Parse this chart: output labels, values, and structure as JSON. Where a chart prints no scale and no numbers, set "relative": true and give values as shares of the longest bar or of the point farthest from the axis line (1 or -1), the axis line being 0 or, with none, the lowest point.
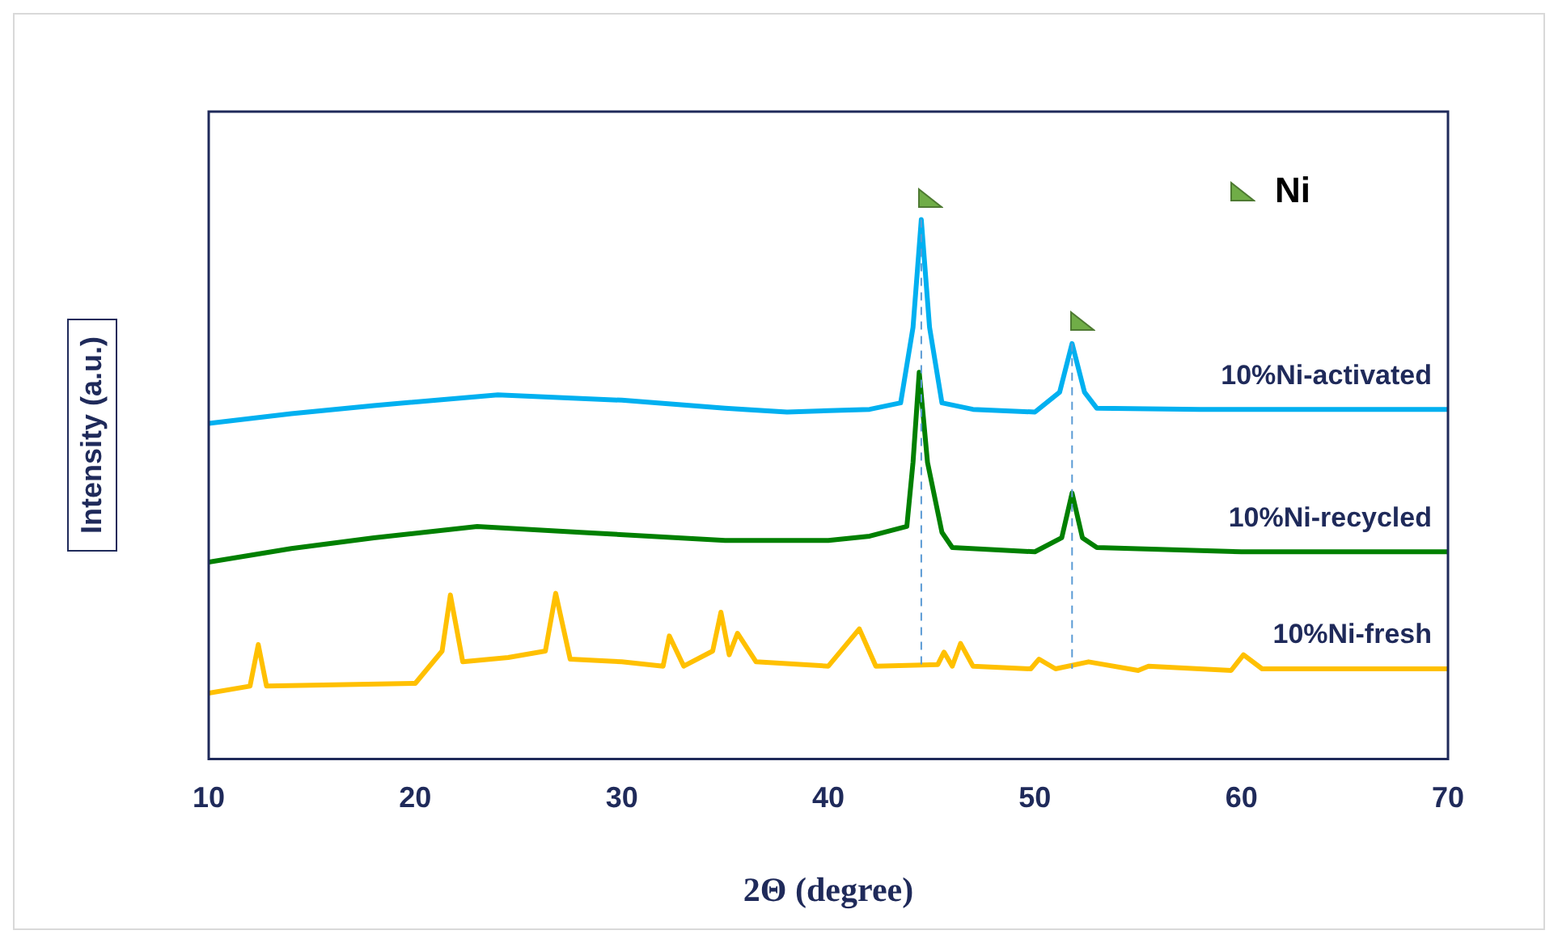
{
  "chart_data": {
    "type": "line",
    "xlabel": "2Θ (degree)",
    "ylabel": "Intensity (a.u.)",
    "relative": true,
    "xlim": [
      10,
      70
    ],
    "xticks": [
      10,
      20,
      30,
      40,
      50,
      60,
      70
    ],
    "grid": false,
    "legend": false,
    "marker": "none",
    "tick_labels": "x",
    "annotations": [
      "Ni"
    ],
    "ref_lines": [
      {
        "axis": "x",
        "value": 44.5,
        "color": "#5b9bd5",
        "line_style": "dashed"
      },
      {
        "axis": "x",
        "value": 51.8,
        "color": "#5b9bd5",
        "line_style": "dashed"
      }
    ],
    "series": [
      {
        "name": "10%Ni-activated",
        "color": "#00b0f0",
        "x": [
          10,
          14,
          18,
          24,
          30,
          35,
          38,
          42,
          43.5,
          44.1,
          44.5,
          44.9,
          45.5,
          47,
          50,
          51.2,
          51.8,
          52.4,
          53,
          58,
          64,
          70
        ],
        "values": [
          0.622,
          0.64,
          0.655,
          0.675,
          0.665,
          0.65,
          0.643,
          0.648,
          0.66,
          0.8,
          1.0,
          0.8,
          0.66,
          0.648,
          0.643,
          0.68,
          0.77,
          0.68,
          0.65,
          0.648,
          0.648,
          0.648
        ]
      },
      {
        "name": "10%Ni-recycled",
        "color": "#008000",
        "x": [
          10,
          14,
          18,
          23,
          28,
          35,
          40,
          42,
          43.8,
          44.1,
          44.4,
          44.8,
          45.5,
          46,
          50,
          51.3,
          51.8,
          52.3,
          53,
          60,
          70
        ],
        "values": [
          0.365,
          0.39,
          0.41,
          0.431,
          0.42,
          0.405,
          0.405,
          0.413,
          0.431,
          0.55,
          0.717,
          0.55,
          0.42,
          0.392,
          0.384,
          0.41,
          0.493,
          0.41,
          0.392,
          0.384,
          0.384
        ]
      },
      {
        "name": "10%Ni-fresh",
        "color": "#ffc000",
        "x": [
          10,
          12,
          12.4,
          12.8,
          20,
          21.3,
          21.7,
          22.3,
          24.5,
          26.3,
          26.8,
          27.5,
          30,
          32,
          32.3,
          33,
          34.4,
          34.8,
          35.2,
          35.6,
          36.5,
          40,
          41.5,
          42.3,
          45.3,
          45.6,
          46,
          46.4,
          47,
          49.8,
          50.2,
          51,
          52.6,
          55,
          55.5,
          59.5,
          60.1,
          61,
          70
        ],
        "values": [
          0.122,
          0.135,
          0.212,
          0.135,
          0.14,
          0.2,
          0.304,
          0.18,
          0.188,
          0.2,
          0.307,
          0.185,
          0.18,
          0.172,
          0.228,
          0.172,
          0.2,
          0.272,
          0.193,
          0.233,
          0.18,
          0.172,
          0.241,
          0.172,
          0.175,
          0.198,
          0.172,
          0.214,
          0.172,
          0.167,
          0.185,
          0.167,
          0.18,
          0.164,
          0.172,
          0.164,
          0.193,
          0.167,
          0.167
        ]
      }
    ]
  }
}
